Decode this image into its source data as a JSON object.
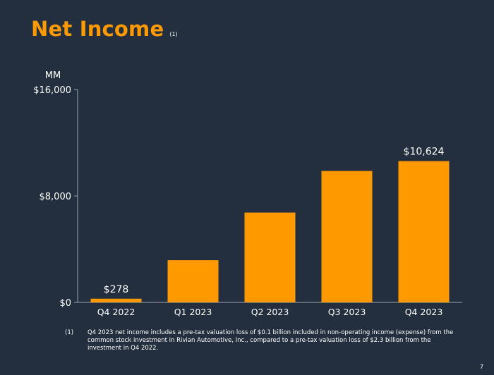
{
  "header": {
    "title": "Net Income",
    "title_note": "(1)"
  },
  "chart_data": {
    "type": "bar",
    "title": "Net Income",
    "unit_label": "MM",
    "categories": [
      "Q4 2022",
      "Q1 2023",
      "Q2 2023",
      "Q3 2023",
      "Q4 2023"
    ],
    "values": [
      278,
      3172,
      6750,
      9879,
      10624
    ],
    "data_labels": {
      "0": "$278",
      "4": "$10,624"
    },
    "y_ticks": [
      0,
      8000,
      16000
    ],
    "y_tick_labels": [
      "$0",
      "$8,000",
      "$16,000"
    ],
    "ylim": [
      0,
      16000
    ],
    "xlabel": "",
    "ylabel": "MM",
    "bar_color": "#ff9900",
    "axis_color": "#9aa3ad"
  },
  "footnote": {
    "number": "(1)",
    "text": "Q4 2023 net income includes a pre-tax valuation loss of $0.1 billion included in non-operating income (expense) from the common stock investment in Rivian Automotive, Inc., compared to a pre-tax valuation loss of $2.3 billion from the investment in Q4 2022."
  },
  "page_number": "7",
  "colors": {
    "background": "#232f3e",
    "accent": "#ff9900",
    "text": "#ffffff"
  }
}
